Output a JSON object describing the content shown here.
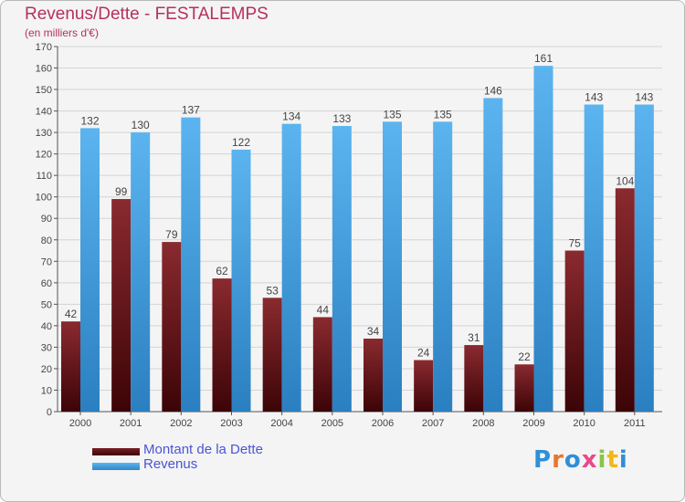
{
  "page": {
    "title": "Revenus/Dette - FESTALEMPS",
    "subtitle": "(en milliers d'€)",
    "logo_text": "Proxiti"
  },
  "colors": {
    "debt": "#7a1f24",
    "revenue": "#4ea6e6",
    "title": "#b5305f",
    "legend_text": "#4a54d8"
  },
  "chart_data": {
    "type": "bar",
    "categories": [
      "2000",
      "2001",
      "2002",
      "2003",
      "2004",
      "2005",
      "2006",
      "2007",
      "2008",
      "2009",
      "2010",
      "2011"
    ],
    "series": [
      {
        "name": "Montant de la Dette",
        "color": "#7a1f24",
        "values": [
          42,
          99,
          79,
          62,
          53,
          44,
          34,
          24,
          31,
          22,
          75,
          104
        ]
      },
      {
        "name": "Revenus",
        "color": "#4ea6e6",
        "values": [
          132,
          130,
          137,
          122,
          134,
          133,
          135,
          135,
          146,
          161,
          143,
          143
        ]
      }
    ],
    "ylim": [
      0,
      170
    ],
    "yticks": [
      0,
      10,
      20,
      30,
      40,
      50,
      60,
      70,
      80,
      90,
      100,
      110,
      120,
      130,
      140,
      150,
      160,
      170
    ],
    "grid": true,
    "legend_position": "bottom-left"
  }
}
